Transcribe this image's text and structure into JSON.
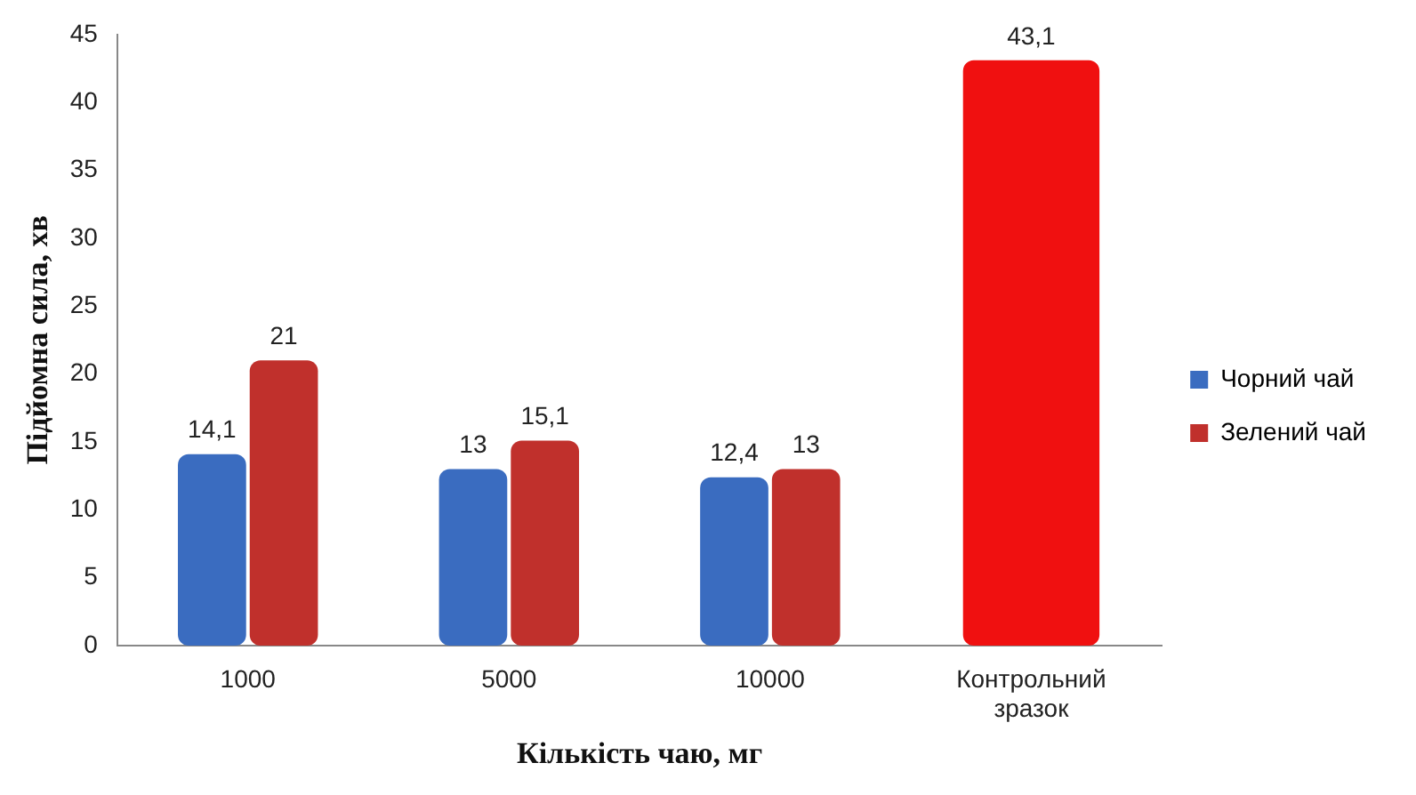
{
  "chart_data": {
    "type": "bar",
    "xlabel": "Кількість чаю, мг",
    "ylabel": "Підйомна сила, хв",
    "categories": [
      "1000",
      "5000",
      "10000",
      "Контрольний зразок"
    ],
    "series": [
      {
        "name": "Чорний чай",
        "color": "#3a6cc0",
        "values": [
          14.1,
          13,
          12.4,
          null
        ],
        "value_labels": [
          "14,1",
          "13",
          "12,4",
          null
        ]
      },
      {
        "name": "Зелений чай",
        "color": "#c0302c",
        "colors": [
          "#c0302c",
          "#c0302c",
          "#c0302c",
          "#f01010"
        ],
        "values": [
          21,
          15.1,
          13,
          43.1
        ],
        "value_labels": [
          "21",
          "15,1",
          "13",
          "43,1"
        ]
      }
    ],
    "ylim": [
      0,
      45
    ],
    "yticks": [
      0,
      5,
      10,
      15,
      20,
      25,
      30,
      35,
      40,
      45
    ],
    "grid": false,
    "legend": "right"
  }
}
